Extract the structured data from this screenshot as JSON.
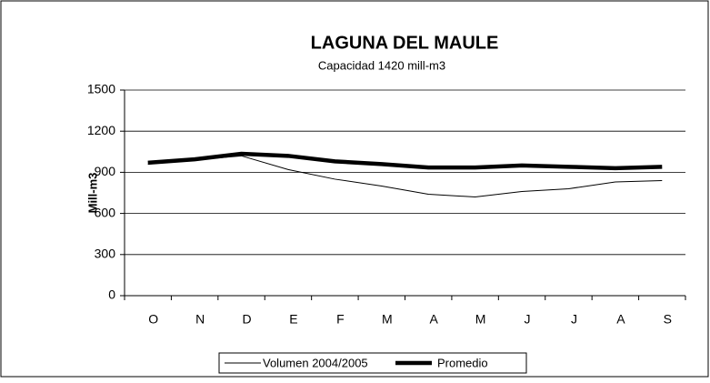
{
  "chart_data": {
    "type": "line",
    "title": "LAGUNA DEL MAULE",
    "subtitle": "Capacidad  1420 mill-m3",
    "y_label": "Mill-m3",
    "categories": [
      "O",
      "N",
      "D",
      "E",
      "F",
      "M",
      "A",
      "M",
      "J",
      "J",
      "A",
      "S"
    ],
    "series": [
      {
        "name": "Volumen  2004/2005",
        "color": "#000000",
        "width": 1,
        "values": [
          960,
          990,
          1020,
          920,
          850,
          800,
          740,
          720,
          760,
          780,
          830,
          840
        ]
      },
      {
        "name": "Promedio",
        "color": "#000000",
        "width": 4.5,
        "values": [
          970,
          995,
          1035,
          1020,
          980,
          960,
          935,
          935,
          950,
          940,
          930,
          940
        ]
      }
    ],
    "ylim": [
      0,
      1500
    ],
    "yticks": [
      0,
      300,
      600,
      900,
      1200,
      1500
    ],
    "grid": true,
    "legend": "bottom"
  }
}
